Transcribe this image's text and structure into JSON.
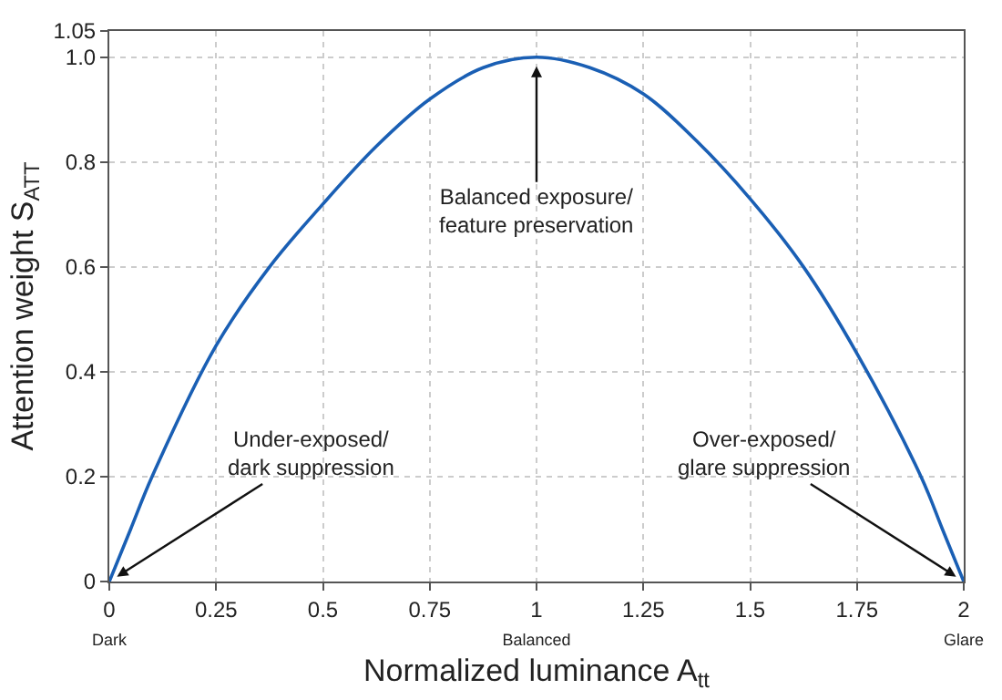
{
  "chart_data": {
    "type": "line",
    "xlabel": "Normalized luminance A$_{tt}$",
    "ylabel": "Attention weight S$_{ATT}$",
    "x": [
      0,
      0.05,
      0.1,
      0.25,
      0.375,
      0.5,
      0.625,
      0.75,
      0.875,
      1,
      1.125,
      1.25,
      1.375,
      1.5,
      1.625,
      1.75,
      1.9,
      1.95,
      2
    ],
    "series": [
      {
        "color": "#1a5fb4",
        "values": [
          0,
          0.1,
          0.2,
          0.45,
          0.6,
          0.72,
          0.83,
          0.92,
          0.98,
          1.0,
          0.98,
          0.93,
          0.84,
          0.73,
          0.6,
          0.435,
          0.2,
          0.1,
          0
        ]
      }
    ],
    "xlim": [
      0,
      2
    ],
    "ylim": [
      0,
      1.05
    ],
    "xticks": [
      {
        "value": 0,
        "label": "0\nDark"
      },
      0.25,
      0.5,
      0.75,
      {
        "value": 1,
        "label": "1\nBalanced"
      },
      1.25,
      1.5,
      1.75,
      {
        "value": 2,
        "label": "2\nGlare"
      }
    ],
    "yticks": [
      {
        "value": 0,
        "label": "0"
      },
      0.2,
      0.4,
      0.6,
      0.8,
      {
        "value": 1,
        "label": "1.0"
      },
      1.05
    ],
    "grid": true,
    "marker": "none",
    "line_style": "solid",
    "annotations": [
      {
        "text": "Under-exposed/\ndark suppression",
        "x": 0,
        "y": 0
      },
      {
        "text": "Balanced exposure/\nfeature preservation",
        "x": 1,
        "y": 1.0
      },
      {
        "text": "Over-exposed/\nglare suppression",
        "x": 2,
        "y": 0
      }
    ]
  }
}
